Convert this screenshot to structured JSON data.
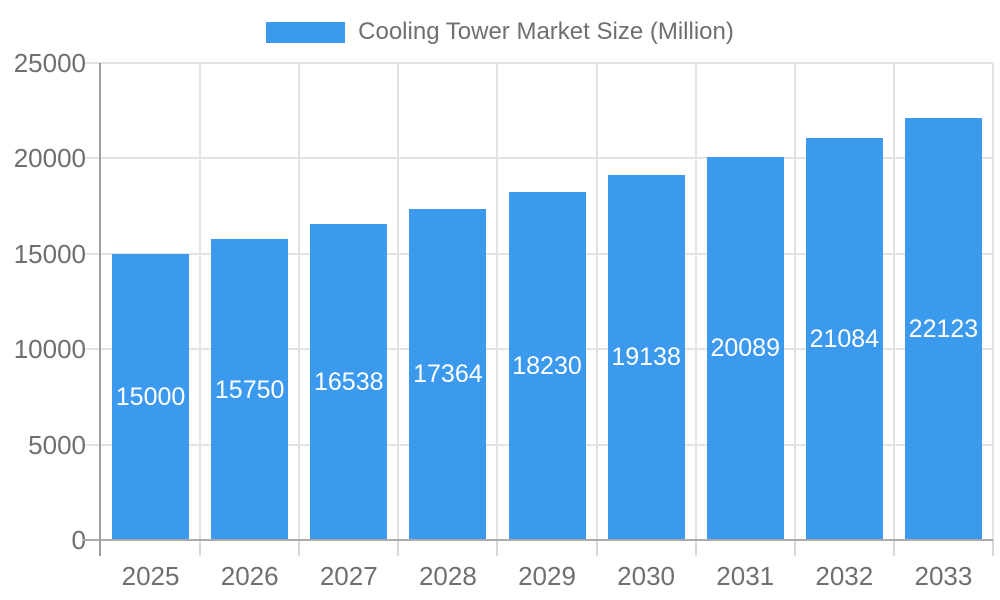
{
  "legend": {
    "label": "Cooling Tower Market Size (Million)"
  },
  "chart_data": {
    "type": "bar",
    "title": "Cooling Tower Market Size (Million)",
    "categories": [
      "2025",
      "2026",
      "2027",
      "2028",
      "2029",
      "2030",
      "2031",
      "2032",
      "2033"
    ],
    "values": [
      15000,
      15750,
      16538,
      17364,
      18230,
      19138,
      20089,
      21084,
      22123
    ],
    "value_labels": [
      "15000",
      "15750",
      "16538",
      "17364",
      "18230",
      "19138",
      "20089",
      "21084",
      "22123"
    ],
    "xlabel": "",
    "ylabel": "",
    "ylim": [
      0,
      25000
    ],
    "yticks": [
      0,
      5000,
      10000,
      15000,
      20000,
      25000
    ],
    "ytick_labels": [
      "0",
      "5000",
      "10000",
      "15000",
      "20000",
      "25000"
    ],
    "grid": true,
    "legend_position": "top-center",
    "value_labels_inside_bars": true
  },
  "colors": {
    "bar": "#3b99ee",
    "bar_value_text": "#ffffff",
    "gridline": "#e3e3e3",
    "x_tick": "#d8d8d8",
    "y_axis_line": "#9e9e9e",
    "x_axis_line": "#ababab",
    "axis_text": "#6f6f6f",
    "legend_text": "#6f6f6f",
    "background": "#ffffff"
  }
}
